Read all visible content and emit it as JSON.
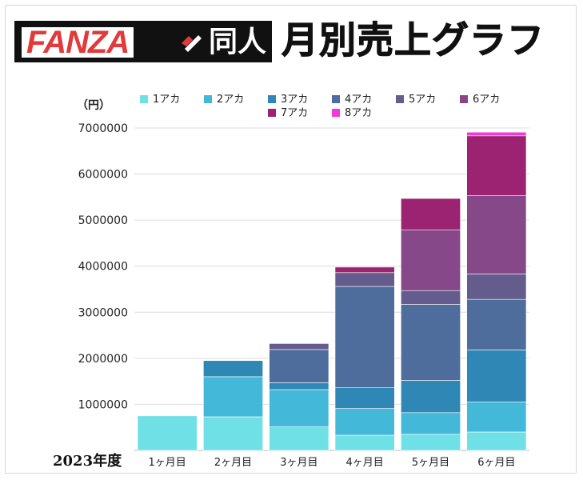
{
  "header": {
    "logo_fanza": "FANZA",
    "logo_doujin": "同人",
    "title": "月別売上グラフ"
  },
  "chart_data": {
    "type": "bar",
    "stacked": true,
    "title": "月別売上グラフ",
    "y_unit_label": "（円）",
    "fiscal_year_label": "2023年度",
    "categories": [
      "1ヶ月目",
      "2ヶ月目",
      "3ヶ月目",
      "4ヶ月目",
      "5ヶ月目",
      "6ヶ月目"
    ],
    "ylim": [
      0,
      7000000
    ],
    "yticks": [
      "1000000",
      "2000000",
      "3000000",
      "4000000",
      "5000000",
      "6000000",
      "7000000"
    ],
    "grid": true,
    "legend_position": "top",
    "series": [
      {
        "name": "1アカ",
        "color": "#6fe1e6",
        "values": [
          750000,
          730000,
          510000,
          330000,
          350000,
          400000
        ]
      },
      {
        "name": "2アカ",
        "color": "#44b8d8",
        "values": [
          0,
          870000,
          810000,
          580000,
          470000,
          650000
        ]
      },
      {
        "name": "3アカ",
        "color": "#2f87b5",
        "values": [
          0,
          350000,
          150000,
          450000,
          700000,
          1130000
        ]
      },
      {
        "name": "4アカ",
        "color": "#4e6c9c",
        "values": [
          0,
          0,
          720000,
          2200000,
          1650000,
          1100000
        ]
      },
      {
        "name": "5アカ",
        "color": "#655c8e",
        "values": [
          0,
          0,
          130000,
          300000,
          300000,
          550000
        ]
      },
      {
        "name": "6アカ",
        "color": "#864888",
        "values": [
          0,
          0,
          0,
          0,
          1320000,
          1700000
        ]
      },
      {
        "name": "7アカ",
        "color": "#9c2272",
        "values": [
          0,
          0,
          0,
          120000,
          680000,
          1300000
        ]
      },
      {
        "name": "8アカ",
        "color": "#f23ad6",
        "values": [
          0,
          0,
          0,
          0,
          0,
          80000
        ]
      }
    ]
  }
}
